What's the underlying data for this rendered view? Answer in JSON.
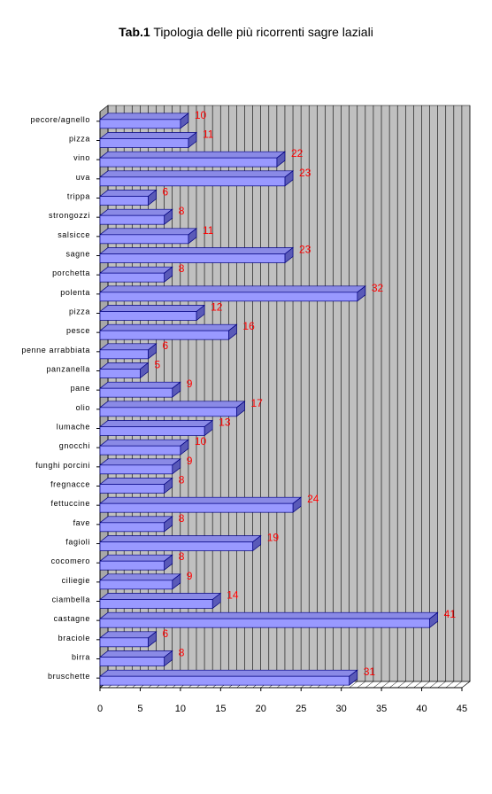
{
  "title": {
    "bold": "Tab.1",
    "rest": " Tipologia delle più ricorrenti sagre laziali"
  },
  "chart_data": {
    "type": "bar",
    "orientation": "horizontal",
    "title": "Tab.1 Tipologia delle più ricorrenti sagre laziali",
    "xlabel": "",
    "ylabel": "",
    "xlim": [
      0,
      45
    ],
    "xticks": [
      0,
      5,
      10,
      15,
      20,
      25,
      30,
      35,
      40,
      45
    ],
    "grid": true,
    "legend": "none",
    "categories": [
      "pecore/agnello",
      "pizza",
      "vino",
      "uva",
      "trippa",
      "strongozzi",
      "salsicce",
      "sagne",
      "porchetta",
      "polenta",
      "pizza",
      "pesce",
      "penne arrabbiata",
      "panzanella",
      "pane",
      "olio",
      "lumache",
      "gnocchi",
      "funghi porcini",
      "fregnacce",
      "fettuccine",
      "fave",
      "fagioli",
      "cocomero",
      "ciliegie",
      "ciambella",
      "castagne",
      "braciole",
      "birra",
      "bruschette"
    ],
    "values": [
      10,
      11,
      22,
      23,
      6,
      8,
      11,
      23,
      8,
      32,
      12,
      16,
      6,
      5,
      9,
      17,
      13,
      10,
      9,
      8,
      24,
      8,
      19,
      8,
      9,
      14,
      41,
      6,
      8,
      31
    ],
    "colors": {
      "bar_front": "#9999ff",
      "bar_top": "#8a8ae6",
      "bar_side": "#5a5ab8",
      "bar_stroke": "#000080",
      "wall": "#c0c0c0",
      "label": "#ff0000"
    }
  }
}
